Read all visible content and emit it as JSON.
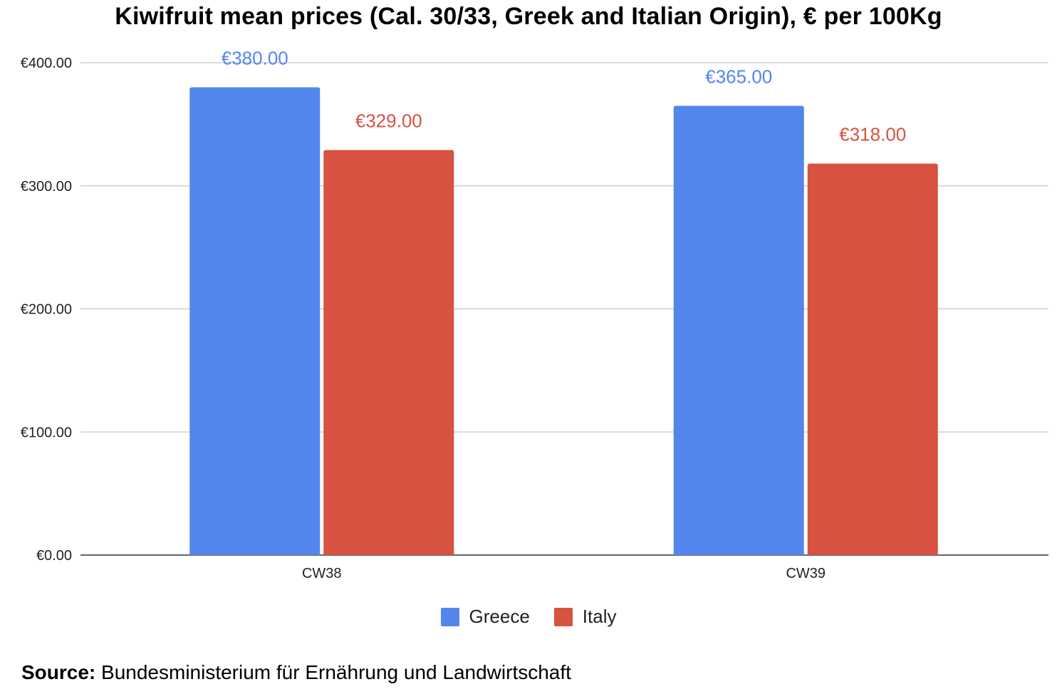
{
  "chart_data": {
    "type": "bar",
    "title": "Kiwifruit mean prices (Cal. 30/33, Greek and Italian Origin), € per 100Kg",
    "categories": [
      "CW38",
      "CW39"
    ],
    "series": [
      {
        "name": "Greece",
        "color": "#5386ed",
        "values": [
          380,
          365
        ],
        "labels": [
          "€380.00",
          "€365.00"
        ]
      },
      {
        "name": "Italy",
        "color": "#d75241",
        "values": [
          329,
          318
        ],
        "labels": [
          "€329.00",
          "€318.00"
        ]
      }
    ],
    "ylim": [
      0,
      400
    ],
    "yticks": [
      {
        "value": 0,
        "label": "€0.00"
      },
      {
        "value": 100,
        "label": "€100.00"
      },
      {
        "value": 200,
        "label": "€200.00"
      },
      {
        "value": 300,
        "label": "€300.00"
      },
      {
        "value": 400,
        "label": "€400.00"
      }
    ],
    "grid": true,
    "legend_position": "bottom"
  },
  "source": {
    "label": "Source:",
    "text": "Bundesministerium für Ernährung und Landwirtschaft"
  }
}
